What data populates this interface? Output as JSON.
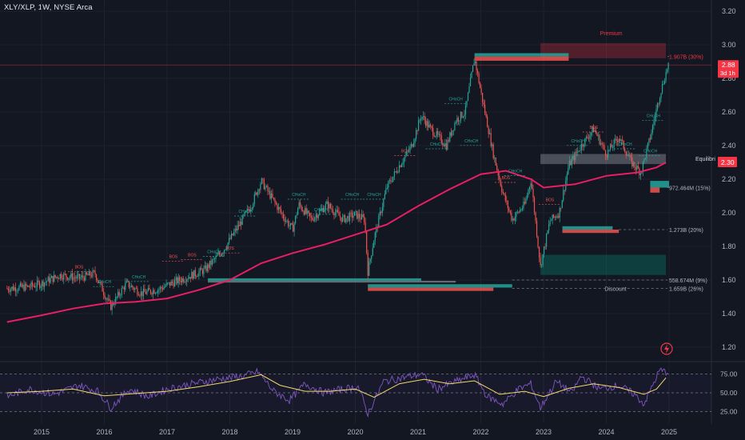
{
  "header": {
    "title": "XLY/XLP, 1W, NYSE Arca"
  },
  "chart_data": {
    "type": "line",
    "symbol": "XLY/XLP",
    "interval": "1W",
    "exchange": "NYSE Arca",
    "colors": {
      "background": "#131722",
      "up": "#26a69a",
      "down": "#ef5350",
      "ma": "#e91e63",
      "rsi": "#7e57c2",
      "rsi_ma": "#f5d76e",
      "price_tag": "#f23645"
    },
    "x_axis": {
      "ticks": [
        2015,
        2016,
        2017,
        2018,
        2019,
        2020,
        2021,
        2022,
        2023,
        2024,
        2025
      ],
      "labels": [
        "2015",
        "2016",
        "2017",
        "2018",
        "2019",
        "2020",
        "2021",
        "2022",
        "2023",
        "2024",
        "2025"
      ]
    },
    "y_axis": {
      "ticks": [
        1.2,
        1.4,
        1.6,
        1.8,
        2.0,
        2.2,
        2.4,
        2.6,
        2.8,
        3.0,
        3.2
      ],
      "labels": [
        "1.20",
        "1.40",
        "1.60",
        "1.80",
        "2.00",
        "2.20",
        "2.40",
        "2.60",
        "2.80",
        "3.00",
        "3.20"
      ],
      "range": [
        1.14,
        3.26
      ]
    },
    "price_path": [
      [
        2014.45,
        1.55
      ],
      [
        2014.8,
        1.56
      ],
      [
        2015.0,
        1.58
      ],
      [
        2015.3,
        1.63
      ],
      [
        2015.6,
        1.61
      ],
      [
        2015.85,
        1.64
      ],
      [
        2016.0,
        1.52
      ],
      [
        2016.1,
        1.44
      ],
      [
        2016.35,
        1.58
      ],
      [
        2016.6,
        1.52
      ],
      [
        2016.9,
        1.55
      ],
      [
        2017.0,
        1.57
      ],
      [
        2017.2,
        1.6
      ],
      [
        2017.4,
        1.63
      ],
      [
        2017.6,
        1.66
      ],
      [
        2017.75,
        1.72
      ],
      [
        2017.9,
        1.78
      ],
      [
        2018.1,
        1.9
      ],
      [
        2018.35,
        2.05
      ],
      [
        2018.5,
        2.19
      ],
      [
        2018.65,
        2.1
      ],
      [
        2018.85,
        1.98
      ],
      [
        2019.0,
        1.9
      ],
      [
        2019.1,
        2.05
      ],
      [
        2019.3,
        1.96
      ],
      [
        2019.55,
        2.05
      ],
      [
        2019.8,
        1.96
      ],
      [
        2020.0,
        1.99
      ],
      [
        2020.15,
        1.96
      ],
      [
        2020.2,
        1.65
      ],
      [
        2020.3,
        1.85
      ],
      [
        2020.5,
        2.15
      ],
      [
        2020.7,
        2.28
      ],
      [
        2020.9,
        2.4
      ],
      [
        2021.05,
        2.58
      ],
      [
        2021.2,
        2.5
      ],
      [
        2021.45,
        2.4
      ],
      [
        2021.6,
        2.55
      ],
      [
        2021.75,
        2.6
      ],
      [
        2021.9,
        2.92
      ],
      [
        2022.0,
        2.72
      ],
      [
        2022.2,
        2.35
      ],
      [
        2022.35,
        2.12
      ],
      [
        2022.5,
        1.96
      ],
      [
        2022.7,
        2.05
      ],
      [
        2022.8,
        2.2
      ],
      [
        2022.95,
        1.68
      ],
      [
        2023.1,
        1.95
      ],
      [
        2023.25,
        2.0
      ],
      [
        2023.4,
        2.28
      ],
      [
        2023.6,
        2.4
      ],
      [
        2023.8,
        2.5
      ],
      [
        2024.0,
        2.35
      ],
      [
        2024.2,
        2.45
      ],
      [
        2024.4,
        2.3
      ],
      [
        2024.55,
        2.24
      ],
      [
        2024.7,
        2.45
      ],
      [
        2024.85,
        2.7
      ],
      [
        2025.0,
        2.9
      ]
    ],
    "series": [
      {
        "values": [
          [
            2014.45,
            1.35
          ],
          [
            2015.0,
            1.39
          ],
          [
            2015.5,
            1.43
          ],
          [
            2016.0,
            1.46
          ],
          [
            2016.5,
            1.47
          ],
          [
            2017.0,
            1.49
          ],
          [
            2017.5,
            1.54
          ],
          [
            2018.0,
            1.6
          ],
          [
            2018.5,
            1.7
          ],
          [
            2019.0,
            1.76
          ],
          [
            2019.5,
            1.81
          ],
          [
            2020.0,
            1.87
          ],
          [
            2020.5,
            1.93
          ],
          [
            2021.0,
            2.04
          ],
          [
            2021.5,
            2.14
          ],
          [
            2022.0,
            2.23
          ],
          [
            2022.4,
            2.25
          ],
          [
            2022.8,
            2.2
          ],
          [
            2023.0,
            2.15
          ],
          [
            2023.5,
            2.17
          ],
          [
            2024.0,
            2.22
          ],
          [
            2024.5,
            2.24
          ],
          [
            2024.8,
            2.27
          ],
          [
            2024.95,
            2.3
          ]
        ]
      }
    ],
    "zones": [
      {
        "label": "Premium",
        "y_min": 2.92,
        "y_max": 3.01,
        "x_from": 2022.95,
        "x_to": 2024.95
      },
      {
        "label": "Equilibrium",
        "y_min": 2.29,
        "y_max": 2.35,
        "x_from": 2022.95,
        "x_to": 2024.95
      },
      {
        "label": "Discount",
        "y_min": 1.63,
        "y_max": 1.75,
        "x_from": 2022.95,
        "x_to": 2024.95
      }
    ],
    "volume_labels": [
      {
        "text": "1.907B (30%)",
        "y": 2.93
      },
      {
        "text": "972.464M (15%)",
        "y": 2.15
      },
      {
        "text": "1.273B (20%)",
        "y": 1.9
      },
      {
        "text": "558.674M (9%)",
        "y": 1.6
      },
      {
        "text": "1.659B (26%)",
        "y": 1.55
      }
    ],
    "structure_labels": [
      "BOS",
      "CHoCH"
    ],
    "price_tag": {
      "value": "2.88",
      "countdown": "3d 1h"
    },
    "equilibrium_tag": {
      "value": "2.30",
      "label": "Equilibri"
    },
    "rsi": {
      "levels": [
        75,
        50,
        25
      ],
      "labels": [
        "75.00",
        "50.00",
        "25.00"
      ],
      "path": [
        [
          2014.45,
          45
        ],
        [
          2014.8,
          55
        ],
        [
          2015.2,
          48
        ],
        [
          2015.6,
          60
        ],
        [
          2015.9,
          52
        ],
        [
          2016.1,
          30
        ],
        [
          2016.4,
          55
        ],
        [
          2016.7,
          45
        ],
        [
          2017.0,
          55
        ],
        [
          2017.4,
          62
        ],
        [
          2017.8,
          68
        ],
        [
          2018.2,
          72
        ],
        [
          2018.45,
          78
        ],
        [
          2018.7,
          52
        ],
        [
          2018.95,
          40
        ],
        [
          2019.2,
          62
        ],
        [
          2019.5,
          50
        ],
        [
          2019.8,
          55
        ],
        [
          2020.05,
          58
        ],
        [
          2020.2,
          22
        ],
        [
          2020.45,
          65
        ],
        [
          2020.75,
          70
        ],
        [
          2021.05,
          75
        ],
        [
          2021.3,
          55
        ],
        [
          2021.6,
          65
        ],
        [
          2021.9,
          74
        ],
        [
          2022.1,
          45
        ],
        [
          2022.35,
          35
        ],
        [
          2022.6,
          55
        ],
        [
          2022.8,
          62
        ],
        [
          2022.95,
          30
        ],
        [
          2023.2,
          65
        ],
        [
          2023.45,
          50
        ],
        [
          2023.6,
          72
        ],
        [
          2023.9,
          55
        ],
        [
          2024.2,
          60
        ],
        [
          2024.45,
          48
        ],
        [
          2024.6,
          35
        ],
        [
          2024.75,
          62
        ],
        [
          2024.85,
          80
        ],
        [
          2024.95,
          78
        ]
      ],
      "ma_path": [
        [
          2014.45,
          50
        ],
        [
          2015.0,
          52
        ],
        [
          2015.5,
          55
        ],
        [
          2016.0,
          46
        ],
        [
          2016.5,
          49
        ],
        [
          2017.0,
          52
        ],
        [
          2017.5,
          58
        ],
        [
          2018.0,
          65
        ],
        [
          2018.5,
          74
        ],
        [
          2018.8,
          60
        ],
        [
          2019.2,
          52
        ],
        [
          2019.6,
          52
        ],
        [
          2020.0,
          55
        ],
        [
          2020.3,
          44
        ],
        [
          2020.7,
          62
        ],
        [
          2021.1,
          68
        ],
        [
          2021.5,
          62
        ],
        [
          2021.9,
          66
        ],
        [
          2022.3,
          48
        ],
        [
          2022.7,
          52
        ],
        [
          2023.0,
          45
        ],
        [
          2023.4,
          56
        ],
        [
          2023.8,
          62
        ],
        [
          2024.2,
          57
        ],
        [
          2024.6,
          48
        ],
        [
          2024.8,
          55
        ],
        [
          2024.95,
          70
        ]
      ]
    }
  }
}
